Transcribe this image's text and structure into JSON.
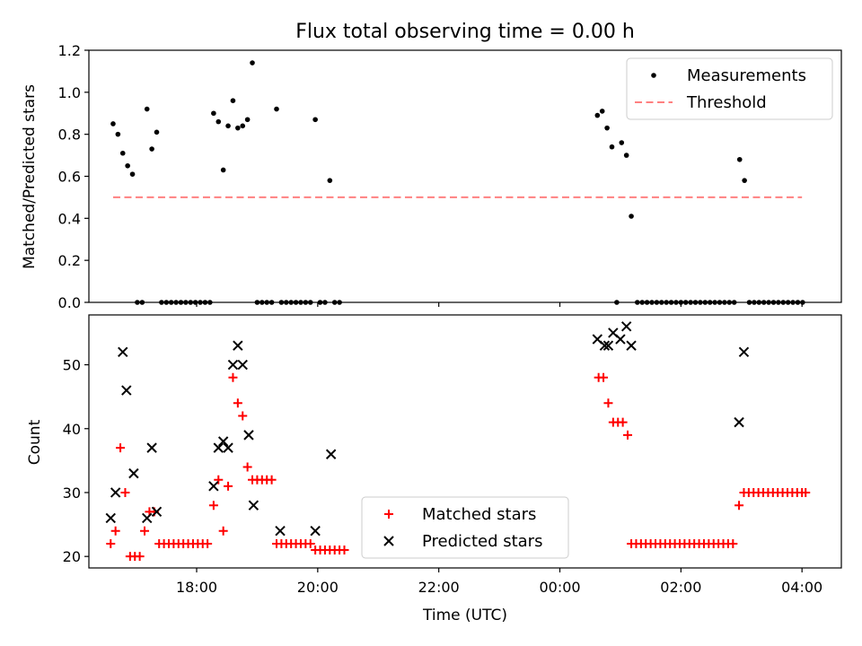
{
  "chart_data": [
    {
      "type": "scatter",
      "title": "Flux total observing time = 0.00 h",
      "xlabel": "",
      "ylabel": "Matched/Predicted stars",
      "xlim": [
        16.22,
        28.65
      ],
      "ylim": [
        0,
        1.2
      ],
      "yticks": [
        0,
        0.2,
        0.4,
        0.6,
        0.8,
        1.0,
        1.2
      ],
      "ytick_labels": [
        "0.0",
        "0.2",
        "0.4",
        "0.6",
        "0.8",
        "1.0",
        "1.2"
      ],
      "xticks": [
        18,
        20,
        22,
        24,
        26,
        28
      ],
      "legend_position": "top-right",
      "legend": [
        "Measurements",
        "Threshold"
      ],
      "threshold": {
        "name": "Threshold",
        "value": 0.5,
        "x_range": [
          16.62,
          28.0
        ],
        "color": "#ff8080"
      },
      "series": [
        {
          "name": "Measurements",
          "marker": "dot",
          "points": [
            [
              16.62,
              0.85
            ],
            [
              16.7,
              0.8
            ],
            [
              16.78,
              0.71
            ],
            [
              16.86,
              0.65
            ],
            [
              16.94,
              0.61
            ],
            [
              17.02,
              0.0
            ],
            [
              17.1,
              0.0
            ],
            [
              17.18,
              0.92
            ],
            [
              17.26,
              0.73
            ],
            [
              17.34,
              0.81
            ],
            [
              17.42,
              0.0
            ],
            [
              17.5,
              0.0
            ],
            [
              17.58,
              0.0
            ],
            [
              17.66,
              0.0
            ],
            [
              17.74,
              0.0
            ],
            [
              17.82,
              0.0
            ],
            [
              17.9,
              0.0
            ],
            [
              17.98,
              0.0
            ],
            [
              18.06,
              0.0
            ],
            [
              18.14,
              0.0
            ],
            [
              18.22,
              0.0
            ],
            [
              18.28,
              0.9
            ],
            [
              18.36,
              0.86
            ],
            [
              18.44,
              0.63
            ],
            [
              18.52,
              0.84
            ],
            [
              18.6,
              0.96
            ],
            [
              18.68,
              0.83
            ],
            [
              18.76,
              0.84
            ],
            [
              18.84,
              0.87
            ],
            [
              18.92,
              1.14
            ],
            [
              19.0,
              0.0
            ],
            [
              19.08,
              0.0
            ],
            [
              19.16,
              0.0
            ],
            [
              19.24,
              0.0
            ],
            [
              19.32,
              0.92
            ],
            [
              19.4,
              0.0
            ],
            [
              19.48,
              0.0
            ],
            [
              19.56,
              0.0
            ],
            [
              19.64,
              0.0
            ],
            [
              19.72,
              0.0
            ],
            [
              19.8,
              0.0
            ],
            [
              19.88,
              0.0
            ],
            [
              19.96,
              0.87
            ],
            [
              20.04,
              0.0
            ],
            [
              20.12,
              0.0
            ],
            [
              20.2,
              0.58
            ],
            [
              20.28,
              0.0
            ],
            [
              20.36,
              0.0
            ],
            [
              24.62,
              0.89
            ],
            [
              24.7,
              0.91
            ],
            [
              24.78,
              0.83
            ],
            [
              24.86,
              0.74
            ],
            [
              24.94,
              0.0
            ],
            [
              25.02,
              0.76
            ],
            [
              25.1,
              0.7
            ],
            [
              25.18,
              0.41
            ],
            [
              25.28,
              0.0
            ],
            [
              25.36,
              0.0
            ],
            [
              25.44,
              0.0
            ],
            [
              25.52,
              0.0
            ],
            [
              25.6,
              0.0
            ],
            [
              25.68,
              0.0
            ],
            [
              25.76,
              0.0
            ],
            [
              25.84,
              0.0
            ],
            [
              25.92,
              0.0
            ],
            [
              26.0,
              0.0
            ],
            [
              26.08,
              0.0
            ],
            [
              26.16,
              0.0
            ],
            [
              26.24,
              0.0
            ],
            [
              26.32,
              0.0
            ],
            [
              26.4,
              0.0
            ],
            [
              26.48,
              0.0
            ],
            [
              26.56,
              0.0
            ],
            [
              26.64,
              0.0
            ],
            [
              26.72,
              0.0
            ],
            [
              26.8,
              0.0
            ],
            [
              26.88,
              0.0
            ],
            [
              26.97,
              0.68
            ],
            [
              27.05,
              0.58
            ],
            [
              27.13,
              0.0
            ],
            [
              27.21,
              0.0
            ],
            [
              27.29,
              0.0
            ],
            [
              27.37,
              0.0
            ],
            [
              27.45,
              0.0
            ],
            [
              27.53,
              0.0
            ],
            [
              27.61,
              0.0
            ],
            [
              27.69,
              0.0
            ],
            [
              27.77,
              0.0
            ],
            [
              27.85,
              0.0
            ],
            [
              27.93,
              0.0
            ],
            [
              28.01,
              0.0
            ]
          ]
        }
      ]
    },
    {
      "type": "scatter",
      "title": "",
      "xlabel": "Time (UTC)",
      "ylabel": "Count",
      "xlim": [
        16.22,
        28.65
      ],
      "ylim": [
        18.2,
        57.8
      ],
      "yticks": [
        20,
        30,
        40,
        50
      ],
      "ytick_labels": [
        "20",
        "30",
        "40",
        "50"
      ],
      "xticks": [
        18,
        20,
        22,
        24,
        26,
        28
      ],
      "xtick_labels": [
        "18:00",
        "20:00",
        "22:00",
        "00:00",
        "02:00",
        "04:00"
      ],
      "legend_position": "lower-center",
      "legend": [
        "Matched stars",
        "Predicted stars"
      ],
      "series": [
        {
          "name": "Matched stars",
          "marker": "plus",
          "color": "#ff0000",
          "points": [
            [
              16.58,
              22
            ],
            [
              16.66,
              24
            ],
            [
              16.74,
              37
            ],
            [
              16.82,
              30
            ],
            [
              16.9,
              20
            ],
            [
              16.98,
              20
            ],
            [
              17.06,
              20
            ],
            [
              17.14,
              24
            ],
            [
              17.22,
              27
            ],
            [
              17.3,
              27
            ],
            [
              17.38,
              22
            ],
            [
              17.46,
              22
            ],
            [
              17.54,
              22
            ],
            [
              17.62,
              22
            ],
            [
              17.7,
              22
            ],
            [
              17.78,
              22
            ],
            [
              17.86,
              22
            ],
            [
              17.94,
              22
            ],
            [
              18.02,
              22
            ],
            [
              18.1,
              22
            ],
            [
              18.18,
              22
            ],
            [
              18.28,
              28
            ],
            [
              18.36,
              32
            ],
            [
              18.44,
              24
            ],
            [
              18.52,
              31
            ],
            [
              18.6,
              48
            ],
            [
              18.68,
              44
            ],
            [
              18.76,
              42
            ],
            [
              18.84,
              34
            ],
            [
              18.92,
              32
            ],
            [
              19.0,
              32
            ],
            [
              19.08,
              32
            ],
            [
              19.16,
              32
            ],
            [
              19.24,
              32
            ],
            [
              19.32,
              22
            ],
            [
              19.4,
              22
            ],
            [
              19.48,
              22
            ],
            [
              19.56,
              22
            ],
            [
              19.64,
              22
            ],
            [
              19.72,
              22
            ],
            [
              19.8,
              22
            ],
            [
              19.88,
              22
            ],
            [
              19.96,
              21
            ],
            [
              20.04,
              21
            ],
            [
              20.12,
              21
            ],
            [
              20.2,
              21
            ],
            [
              20.28,
              21
            ],
            [
              20.36,
              21
            ],
            [
              20.44,
              21
            ],
            [
              24.64,
              48
            ],
            [
              24.72,
              48
            ],
            [
              24.8,
              44
            ],
            [
              24.88,
              41
            ],
            [
              24.96,
              41
            ],
            [
              25.04,
              41
            ],
            [
              25.12,
              39
            ],
            [
              25.18,
              22
            ],
            [
              25.26,
              22
            ],
            [
              25.34,
              22
            ],
            [
              25.42,
              22
            ],
            [
              25.5,
              22
            ],
            [
              25.58,
              22
            ],
            [
              25.66,
              22
            ],
            [
              25.74,
              22
            ],
            [
              25.82,
              22
            ],
            [
              25.9,
              22
            ],
            [
              25.98,
              22
            ],
            [
              26.06,
              22
            ],
            [
              26.14,
              22
            ],
            [
              26.22,
              22
            ],
            [
              26.3,
              22
            ],
            [
              26.38,
              22
            ],
            [
              26.46,
              22
            ],
            [
              26.54,
              22
            ],
            [
              26.62,
              22
            ],
            [
              26.7,
              22
            ],
            [
              26.78,
              22
            ],
            [
              26.86,
              22
            ],
            [
              26.96,
              28
            ],
            [
              27.04,
              30
            ],
            [
              27.12,
              30
            ],
            [
              27.2,
              30
            ],
            [
              27.28,
              30
            ],
            [
              27.36,
              30
            ],
            [
              27.44,
              30
            ],
            [
              27.52,
              30
            ],
            [
              27.6,
              30
            ],
            [
              27.68,
              30
            ],
            [
              27.76,
              30
            ],
            [
              27.84,
              30
            ],
            [
              27.92,
              30
            ],
            [
              28.0,
              30
            ],
            [
              28.06,
              30
            ]
          ]
        },
        {
          "name": "Predicted stars",
          "marker": "x",
          "color": "#000000",
          "points": [
            [
              16.58,
              26
            ],
            [
              16.66,
              30
            ],
            [
              16.78,
              52
            ],
            [
              16.84,
              46
            ],
            [
              16.96,
              33
            ],
            [
              17.18,
              26
            ],
            [
              17.26,
              37
            ],
            [
              17.34,
              27
            ],
            [
              18.28,
              31
            ],
            [
              18.36,
              37
            ],
            [
              18.44,
              38
            ],
            [
              18.52,
              37
            ],
            [
              18.6,
              50
            ],
            [
              18.68,
              53
            ],
            [
              18.76,
              50
            ],
            [
              18.86,
              39
            ],
            [
              18.94,
              28
            ],
            [
              19.38,
              24
            ],
            [
              19.96,
              24
            ],
            [
              20.22,
              36
            ],
            [
              24.62,
              54
            ],
            [
              24.74,
              53
            ],
            [
              24.8,
              53
            ],
            [
              24.88,
              55
            ],
            [
              25.0,
              54
            ],
            [
              25.1,
              56
            ],
            [
              25.18,
              53
            ],
            [
              26.96,
              41
            ],
            [
              27.04,
              52
            ]
          ]
        }
      ]
    }
  ]
}
